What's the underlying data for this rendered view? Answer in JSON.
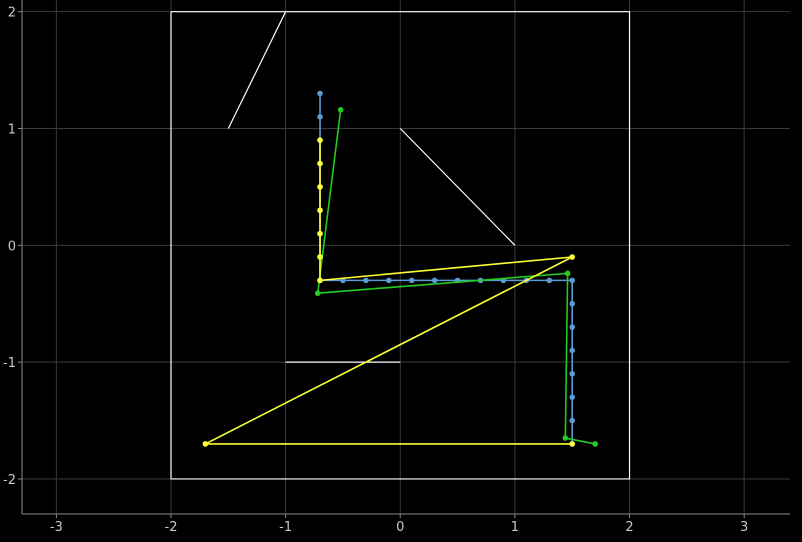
{
  "chart_data": {
    "type": "line",
    "xlim": [
      -3.3,
      3.4
    ],
    "ylim": [
      -2.3,
      2.1
    ],
    "grid": true,
    "x_ticks": [
      "-3",
      "-2",
      "-1",
      "0",
      "1",
      "2",
      "3"
    ],
    "y_ticks": [
      "2",
      "1",
      "0",
      "-1",
      "-2"
    ],
    "x_tick_values": [
      -3,
      -2,
      -1,
      0,
      1,
      2,
      3
    ],
    "y_tick_values": [
      2,
      1,
      0,
      -1,
      -2
    ],
    "shapes": [
      {
        "kind": "box",
        "color": "#ffffff",
        "points": [
          [
            -2,
            2
          ],
          [
            2,
            2
          ],
          [
            2,
            -2
          ],
          [
            -2,
            -2
          ],
          [
            -2,
            2
          ]
        ]
      },
      {
        "kind": "segment",
        "color": "#ffffff",
        "points": [
          [
            -1.5,
            1
          ],
          [
            -1,
            2
          ]
        ]
      },
      {
        "kind": "segment",
        "color": "#ffffff",
        "points": [
          [
            0,
            1
          ],
          [
            1,
            0
          ]
        ]
      },
      {
        "kind": "segment",
        "color": "#ffffff",
        "points": [
          [
            -1,
            -1
          ],
          [
            0,
            -1
          ]
        ]
      }
    ],
    "series": [
      {
        "color": "#5b9bd5",
        "markers": true,
        "points": [
          [
            -0.7,
            1.3
          ],
          [
            -0.7,
            1.1
          ],
          [
            -0.7,
            0.9
          ],
          [
            -0.7,
            0.7
          ],
          [
            -0.7,
            0.5
          ],
          [
            -0.7,
            0.3
          ],
          [
            -0.7,
            0.1
          ],
          [
            -0.7,
            -0.1
          ],
          [
            -0.7,
            -0.3
          ],
          [
            -0.5,
            -0.3
          ],
          [
            -0.3,
            -0.3
          ],
          [
            -0.1,
            -0.3
          ],
          [
            0.1,
            -0.3
          ],
          [
            0.3,
            -0.3
          ],
          [
            0.5,
            -0.3
          ],
          [
            0.7,
            -0.3
          ],
          [
            0.9,
            -0.3
          ],
          [
            1.1,
            -0.3
          ],
          [
            1.3,
            -0.3
          ],
          [
            1.5,
            -0.3
          ],
          [
            1.5,
            -0.5
          ],
          [
            1.5,
            -0.7
          ],
          [
            1.5,
            -0.9
          ],
          [
            1.5,
            -1.1
          ],
          [
            1.5,
            -1.3
          ],
          [
            1.5,
            -1.5
          ],
          [
            1.5,
            -1.7
          ]
        ]
      },
      {
        "color": "#22cc22",
        "markers": true,
        "points": [
          [
            -0.52,
            1.16
          ],
          [
            -0.72,
            -0.41
          ],
          [
            1.46,
            -0.24
          ],
          [
            1.44,
            -1.65
          ],
          [
            1.7,
            -1.7
          ]
        ]
      },
      {
        "color": "#ffff33",
        "markers": true,
        "points": [
          [
            -0.7,
            0.9
          ],
          [
            -0.7,
            0.7
          ],
          [
            -0.7,
            0.5
          ],
          [
            -0.7,
            0.3
          ],
          [
            -0.7,
            0.1
          ],
          [
            -0.7,
            -0.1
          ],
          [
            -0.7,
            -0.3
          ],
          [
            1.5,
            -0.1
          ],
          [
            -1.7,
            -1.7
          ],
          [
            1.5,
            -1.7
          ]
        ]
      }
    ]
  }
}
